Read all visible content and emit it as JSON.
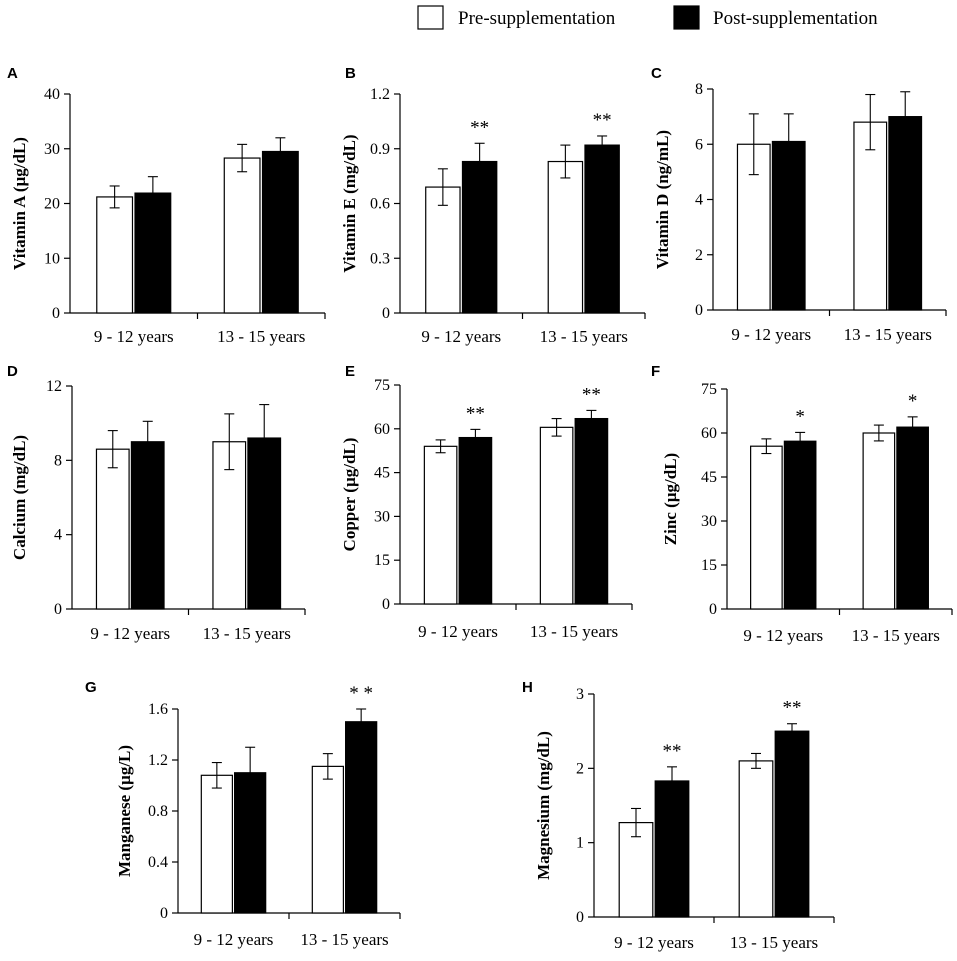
{
  "legend": {
    "pre": "Pre-supplementation",
    "post": "Post-supplementation"
  },
  "colors": {
    "pre": "#ffffff",
    "post": "#000000",
    "stroke": "#000000"
  },
  "chart_data": [
    {
      "type": "bar",
      "panel": "A",
      "ylabel": "Vitamin A (µg/dL)",
      "categories": [
        "9 - 12 years",
        "13 - 15 years"
      ],
      "ylim": [
        0,
        40
      ],
      "yticks": [
        "0",
        "10",
        "20",
        "30",
        "40"
      ],
      "series": [
        {
          "name": "Pre-supplementation",
          "values": [
            21.2,
            28.3
          ],
          "errors": [
            2.0,
            2.5
          ]
        },
        {
          "name": "Post-supplementation",
          "values": [
            21.9,
            29.5
          ],
          "errors": [
            3.0,
            2.5
          ]
        }
      ],
      "significance": [
        "",
        ""
      ]
    },
    {
      "type": "bar",
      "panel": "B",
      "ylabel": "Vitamin E (mg/dL)",
      "categories": [
        "9 - 12 years",
        "13 - 15 years"
      ],
      "ylim": [
        0,
        1.2
      ],
      "yticks": [
        "0",
        "0.3",
        "0.6",
        "0.9",
        "1.2"
      ],
      "series": [
        {
          "name": "Pre-supplementation",
          "values": [
            0.69,
            0.83
          ],
          "errors": [
            0.1,
            0.09
          ]
        },
        {
          "name": "Post-supplementation",
          "values": [
            0.83,
            0.92
          ],
          "errors": [
            0.1,
            0.05
          ]
        }
      ],
      "significance": [
        "**",
        "**"
      ]
    },
    {
      "type": "bar",
      "panel": "C",
      "ylabel": "Vitamin D (ng/mL)",
      "categories": [
        "9 - 12 years",
        "13 - 15 years"
      ],
      "ylim": [
        0,
        8
      ],
      "yticks": [
        "0",
        "2",
        "4",
        "6",
        "8"
      ],
      "series": [
        {
          "name": "Pre-supplementation",
          "values": [
            6.0,
            6.8
          ],
          "errors": [
            1.1,
            1.0
          ]
        },
        {
          "name": "Post-supplementation",
          "values": [
            6.1,
            7.0
          ],
          "errors": [
            1.0,
            0.9
          ]
        }
      ],
      "significance": [
        "",
        ""
      ]
    },
    {
      "type": "bar",
      "panel": "D",
      "ylabel": "Calcium (mg/dL)",
      "categories": [
        "9 - 12 years",
        "13 - 15 years"
      ],
      "ylim": [
        0,
        12
      ],
      "yticks": [
        "0",
        "4",
        "8",
        "12"
      ],
      "series": [
        {
          "name": "Pre-supplementation",
          "values": [
            8.6,
            9.0
          ],
          "errors": [
            1.0,
            1.5
          ]
        },
        {
          "name": "Post-supplementation",
          "values": [
            9.0,
            9.2
          ],
          "errors": [
            1.1,
            1.8
          ]
        }
      ],
      "significance": [
        "",
        ""
      ]
    },
    {
      "type": "bar",
      "panel": "E",
      "ylabel": "Copper (µg/dL)",
      "categories": [
        "9 - 12 years",
        "13 - 15 years"
      ],
      "ylim": [
        0,
        75
      ],
      "yticks": [
        "0",
        "15",
        "30",
        "45",
        "60",
        "75"
      ],
      "series": [
        {
          "name": "Pre-supplementation",
          "values": [
            54,
            60.5
          ],
          "errors": [
            2.2,
            3.0
          ]
        },
        {
          "name": "Post-supplementation",
          "values": [
            57,
            63.5
          ],
          "errors": [
            2.8,
            2.8
          ]
        }
      ],
      "significance": [
        "**",
        "**"
      ]
    },
    {
      "type": "bar",
      "panel": "F",
      "ylabel": "Zinc (µg/dL)",
      "categories": [
        "9 - 12 years",
        "13 - 15 years"
      ],
      "ylim": [
        0,
        75
      ],
      "yticks": [
        "0",
        "15",
        "30",
        "45",
        "60",
        "75"
      ],
      "series": [
        {
          "name": "Pre-supplementation",
          "values": [
            55.5,
            60
          ],
          "errors": [
            2.5,
            2.7
          ]
        },
        {
          "name": "Post-supplementation",
          "values": [
            57.2,
            62
          ],
          "errors": [
            3.0,
            3.5
          ]
        }
      ],
      "significance": [
        "*",
        "*"
      ]
    },
    {
      "type": "bar",
      "panel": "G",
      "ylabel": "Manganese (µg/L)",
      "categories": [
        "9 - 12 years",
        "13 - 15 years"
      ],
      "ylim": [
        0,
        1.6
      ],
      "yticks": [
        "0",
        "0.4",
        "0.8",
        "1.2",
        "1.6"
      ],
      "series": [
        {
          "name": "Pre-supplementation",
          "values": [
            1.08,
            1.15
          ],
          "errors": [
            0.1,
            0.1
          ]
        },
        {
          "name": "Post-supplementation",
          "values": [
            1.1,
            1.5
          ],
          "errors": [
            0.2,
            0.1
          ]
        }
      ],
      "significance": [
        "",
        "* *"
      ]
    },
    {
      "type": "bar",
      "panel": "H",
      "ylabel": "Magnesium (mg/dL)",
      "categories": [
        "9 - 12 years",
        "13 - 15 years"
      ],
      "ylim": [
        0,
        3
      ],
      "yticks": [
        "0",
        "1",
        "2",
        "3"
      ],
      "series": [
        {
          "name": "Pre-supplementation",
          "values": [
            1.27,
            2.1
          ],
          "errors": [
            0.19,
            0.1
          ]
        },
        {
          "name": "Post-supplementation",
          "values": [
            1.83,
            2.5
          ],
          "errors": [
            0.19,
            0.1
          ]
        }
      ],
      "significance": [
        "**",
        "**"
      ]
    }
  ]
}
